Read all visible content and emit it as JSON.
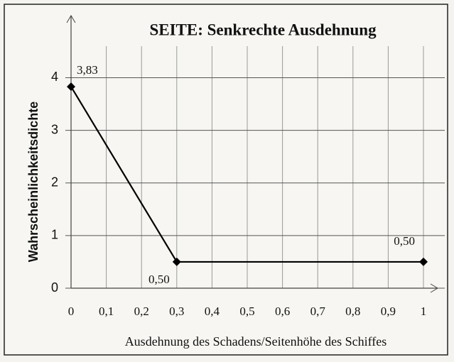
{
  "chart_data": {
    "type": "line",
    "title": "SEITE: Senkrechte Ausdehnung",
    "x_label": "Ausdehnung des Schadens/Seitenhöhe des Schiffes",
    "y_label": "Wahrscheinlichkeitsdichte",
    "x": [
      0,
      0.3,
      1
    ],
    "series": [
      {
        "color": "#000000",
        "values": [
          3.83,
          0.5,
          0.5
        ],
        "value_labels": [
          "3,83",
          "0,50",
          "0,50"
        ]
      }
    ],
    "xlim": [
      0,
      1
    ],
    "ylim": [
      0,
      4.6
    ],
    "xticks": [
      0,
      {
        "value": 0.1,
        "label": "0,1"
      },
      {
        "value": 0.2,
        "label": "0,2"
      },
      {
        "value": 0.3,
        "label": "0,3"
      },
      {
        "value": 0.4,
        "label": "0,4"
      },
      {
        "value": 0.5,
        "label": "0,5"
      },
      {
        "value": 0.6,
        "label": "0,6"
      },
      {
        "value": 0.7,
        "label": "0,7"
      },
      {
        "value": 0.8,
        "label": "0,8"
      },
      {
        "value": 0.9,
        "label": "0,9"
      },
      1
    ],
    "yticks": [
      0,
      1,
      2,
      3,
      4
    ],
    "grid": true
  }
}
